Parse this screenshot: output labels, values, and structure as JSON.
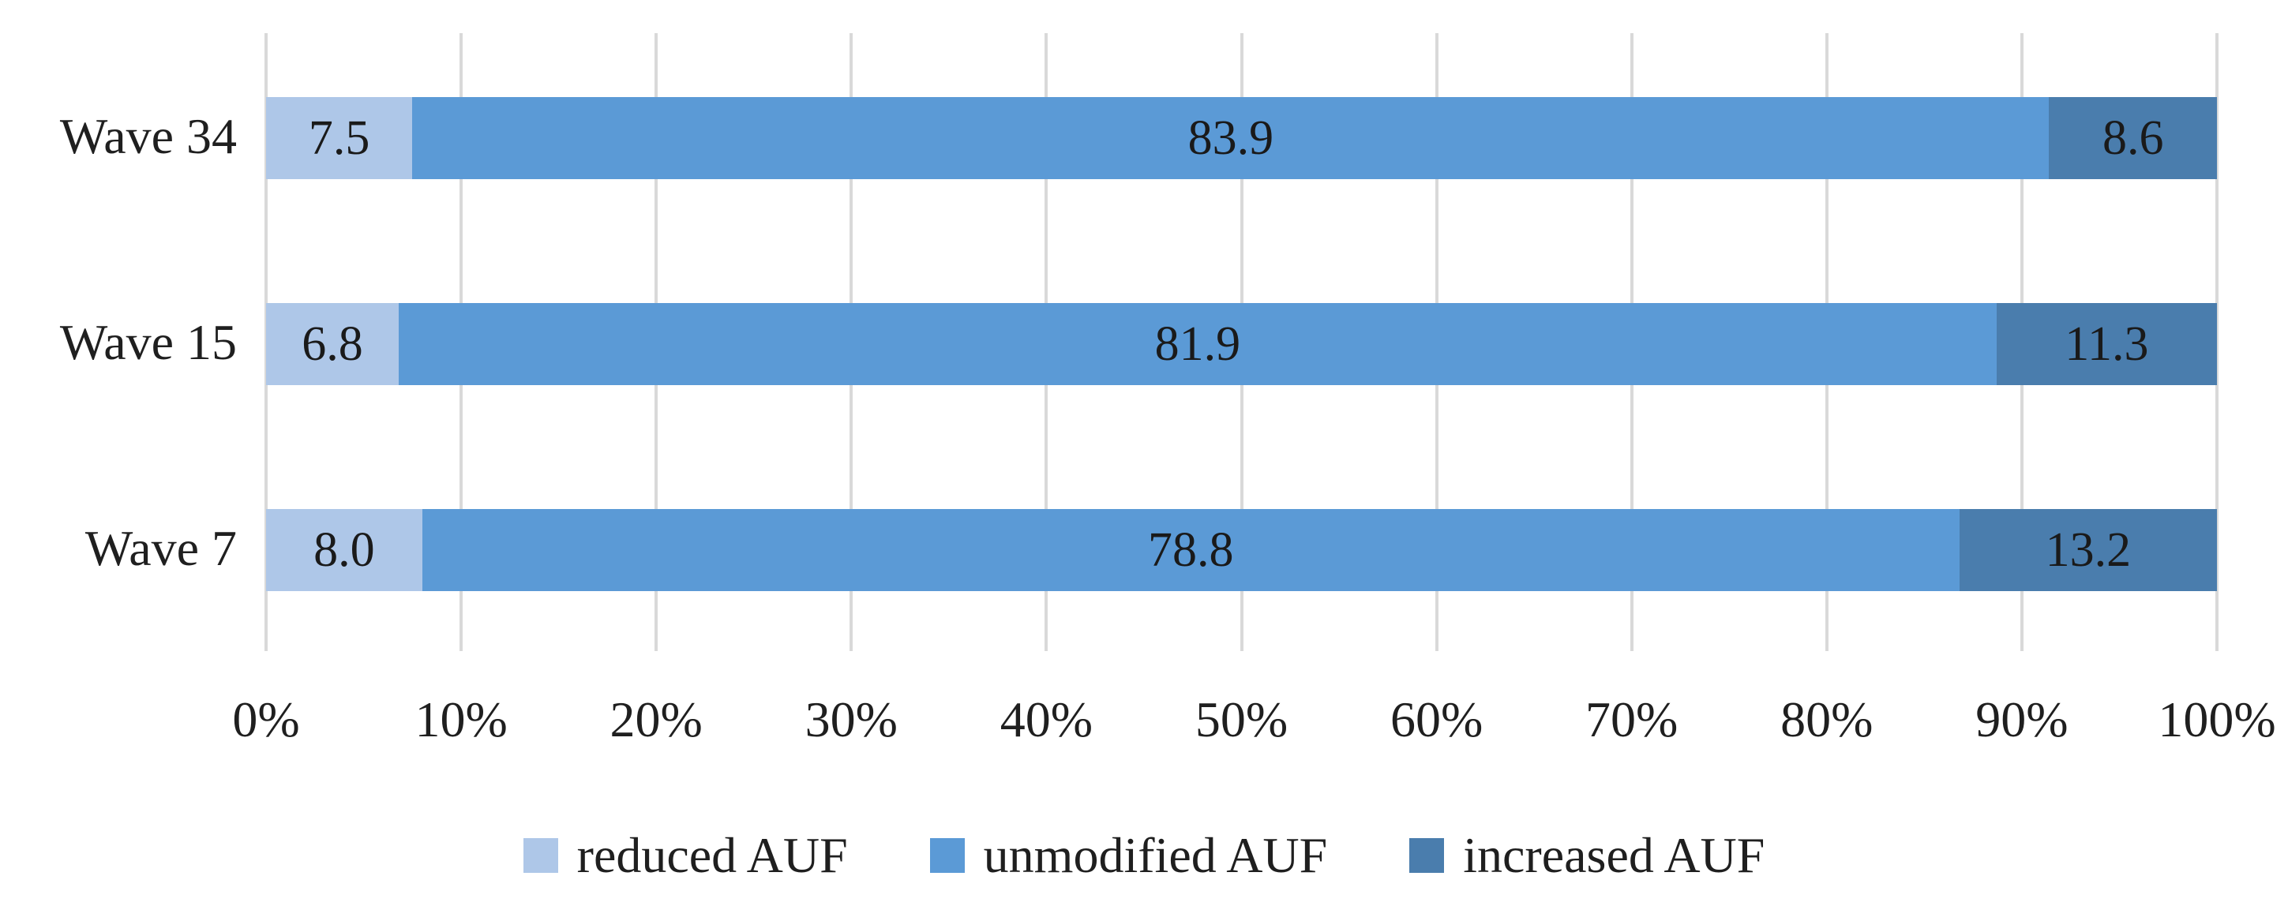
{
  "chart_data": {
    "type": "bar",
    "orientation": "horizontal",
    "stacked": true,
    "title": "",
    "xlabel": "",
    "ylabel": "",
    "categories": [
      "Wave 34",
      "Wave 15",
      "Wave 7"
    ],
    "series": [
      {
        "name": "reduced AUF",
        "color": "#aec7e8",
        "values": [
          7.5,
          6.8,
          8.0
        ],
        "labels": [
          "7.5",
          "6.8",
          "8.0"
        ]
      },
      {
        "name": "unmodified AUF",
        "color": "#5b9ad6",
        "values": [
          83.9,
          81.9,
          78.8
        ],
        "labels": [
          "83.9",
          "81.9",
          "78.8"
        ]
      },
      {
        "name": "increased AUF",
        "color": "#4a7dad",
        "values": [
          8.6,
          11.3,
          13.2
        ],
        "labels": [
          "8.6",
          "11.3",
          "13.2"
        ]
      }
    ],
    "x_axis": {
      "min": 0,
      "max": 100,
      "tick_step": 10,
      "tick_labels": [
        "0%",
        "10%",
        "20%",
        "30%",
        "40%",
        "50%",
        "60%",
        "70%",
        "80%",
        "90%",
        "100%"
      ]
    },
    "grid": {
      "show": true,
      "color": "#d9d9d9"
    },
    "legend": {
      "position": "bottom",
      "entries": [
        "reduced AUF",
        "unmodified AUF",
        "increased AUF"
      ]
    },
    "colors": {
      "background": "#ffffff",
      "data_label": "#1a1a1a",
      "axis_label": "#1f1f1f"
    }
  }
}
